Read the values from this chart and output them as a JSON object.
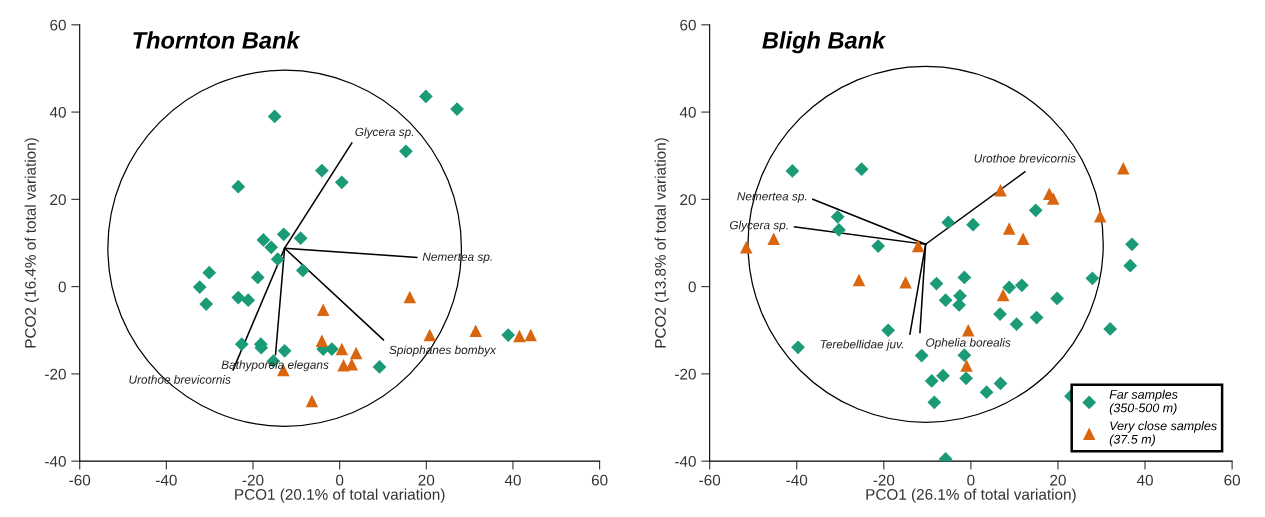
{
  "chart_data": [
    {
      "type": "scatter",
      "title": "Thornton Bank",
      "xlabel": "PCO1 (20.1% of total variation)",
      "ylabel": "PCO2 (16.4% of total variation)",
      "xlim": [
        -60,
        60
      ],
      "ylim": [
        -40,
        60
      ],
      "xticks": [
        -60,
        -40,
        -20,
        0,
        20,
        40,
        60
      ],
      "yticks": [
        -40,
        -20,
        0,
        20,
        40,
        60
      ],
      "grid": false,
      "legend": false,
      "series": [
        {
          "color": "#1b9a77",
          "marker": "diamond",
          "x": [
            -15,
            -23.4,
            -4.1,
            0.5,
            19.9,
            27.1,
            15.3,
            -12.9,
            -17.6,
            -15.8,
            -9.0,
            -14.3,
            -8.5,
            -18.9,
            -30.1,
            -32.3,
            -30.8,
            -23.4,
            -21.1,
            -22.6,
            -18.2,
            -18.1,
            -12.7,
            -15.3,
            -3.8,
            -1.8,
            9.2,
            38.9
          ],
          "values": [
            39.0,
            22.9,
            26.6,
            23.9,
            43.6,
            40.7,
            31.0,
            12.0,
            10.7,
            9.0,
            11.1,
            6.3,
            3.7,
            2.1,
            3.2,
            -0.1,
            -4.0,
            -2.5,
            -3.1,
            -13.2,
            -13.2,
            -14.0,
            -14.7,
            -17.1,
            -14.3,
            -14.3,
            -18.4,
            -11.1
          ]
        },
        {
          "color": "#d9650f",
          "marker": "triangle",
          "x": [
            -3.8,
            -4.1,
            0.5,
            3.8,
            0.9,
            2.8,
            -13.0,
            -6.4,
            16.2,
            20.8,
            31.4,
            41.5,
            44.1
          ],
          "values": [
            -5.3,
            -12.4,
            -14.3,
            -15.2,
            -18.0,
            -17.8,
            -19.1,
            -26.2,
            -2.4,
            -11.1,
            -10.1,
            -11.3,
            -11.1
          ]
        },
        {
          "type": "line",
          "color": "#000000",
          "x": [
            -12.7,
            2.8
          ],
          "values": [
            8.8,
            32.9
          ]
        },
        {
          "type": "line",
          "color": "#000000",
          "x": [
            -12.7,
            17.8
          ],
          "values": [
            8.8,
            6.7
          ]
        },
        {
          "type": "line",
          "color": "#000000",
          "x": [
            -12.7,
            10.1
          ],
          "values": [
            8.8,
            -12.2
          ]
        },
        {
          "type": "line",
          "color": "#000000",
          "x": [
            -12.7,
            -24.6
          ],
          "values": [
            8.8,
            -19.1
          ]
        },
        {
          "type": "line",
          "color": "#000000",
          "x": [
            -12.7,
            -14.8
          ],
          "values": [
            8.8,
            -15.6
          ]
        }
      ],
      "annotations": [
        {
          "text": "Glycera sp.",
          "x": 2.8,
          "y": 32.9
        },
        {
          "text": "Nemertea sp.",
          "x": 17.8,
          "y": 6.7
        },
        {
          "text": "Spiophanes bombyx",
          "x": 10.1,
          "y": -12.2
        },
        {
          "text": "Urothoe brevicornis",
          "x": -24.6,
          "y": -19.1
        },
        {
          "text": "Bathyporeia elegans",
          "x": -14.8,
          "y": -15.6
        }
      ]
    },
    {
      "type": "scatter",
      "title": "Bligh Bank",
      "xlabel": "PCO1 (26.1% of total variation)",
      "ylabel": "PCO2 (13.8% of total variation)",
      "xlim": [
        -60,
        60
      ],
      "ylim": [
        -40,
        60
      ],
      "xticks": [
        -60,
        -40,
        -20,
        0,
        20,
        40,
        60
      ],
      "yticks": [
        -40,
        -20,
        0,
        20,
        40,
        60
      ],
      "grid": false,
      "legend": "bottom right",
      "series": [
        {
          "name": "Far samples\n(350-500 m)",
          "color": "#1b9a77",
          "marker": "diamond",
          "x": [
            -41.0,
            -25.1,
            -30.6,
            -30.3,
            -21.3,
            -5.2,
            0.5,
            -7.9,
            -1.5,
            -5.8,
            -2.5,
            -2.7,
            -19.0,
            -39.7,
            -11.3,
            -1.5,
            -9.0,
            -6.4,
            -1.1,
            -8.4,
            -5.8,
            14.9,
            8.8,
            11.7,
            6.7,
            10.5,
            15.1,
            19.8,
            27.9,
            37.0,
            36.6,
            32.0,
            3.6,
            6.8,
            23.0
          ],
          "values": [
            26.5,
            26.9,
            16.0,
            13.0,
            9.3,
            14.7,
            14.2,
            0.7,
            2.1,
            -3.1,
            -2.1,
            -4.2,
            -10.0,
            -13.9,
            -15.8,
            -15.7,
            -21.6,
            -20.4,
            -21.0,
            -26.5,
            -39.5,
            17.5,
            -0.2,
            0.3,
            -6.3,
            -8.6,
            -7.1,
            -2.7,
            1.9,
            9.7,
            4.8,
            -9.7,
            -24.2,
            -22.2,
            -25.1
          ]
        },
        {
          "name": "Very close samples\n(37.5 m)",
          "color": "#d9650f",
          "marker": "triangle",
          "x": [
            -51.6,
            -45.3,
            -12.1,
            -25.7,
            -15.0,
            -0.6,
            -1.0,
            6.8,
            18.0,
            18.9,
            8.8,
            12.0,
            29.7,
            35.0,
            7.4
          ],
          "values": [
            9.0,
            11.0,
            9.3,
            1.5,
            1.0,
            -10.0,
            -18.1,
            22.1,
            21.3,
            20.2,
            13.3,
            11.0,
            16.1,
            27.1,
            -1.9
          ]
        },
        {
          "type": "line",
          "color": "#000000",
          "x": [
            -10.4,
            -36.3
          ],
          "values": [
            9.7,
            20.0
          ]
        },
        {
          "type": "line",
          "color": "#000000",
          "x": [
            -10.4,
            -40.5
          ],
          "values": [
            9.7,
            13.7
          ]
        },
        {
          "type": "line",
          "color": "#000000",
          "x": [
            -10.4,
            12.4
          ],
          "values": [
            9.7,
            26.3
          ]
        },
        {
          "type": "line",
          "color": "#000000",
          "x": [
            -10.4,
            -14.0
          ],
          "values": [
            9.7,
            -10.9
          ]
        },
        {
          "type": "line",
          "color": "#000000",
          "x": [
            -10.4,
            -11.7
          ],
          "values": [
            9.7,
            -10.5
          ]
        }
      ],
      "annotations": [
        {
          "text": "Nemertea sp.",
          "x": -36.3,
          "y": 20.0
        },
        {
          "text": "Glycera sp.",
          "x": -40.5,
          "y": 13.7
        },
        {
          "text": "Urothoe brevicornis",
          "x": 12.4,
          "y": 26.3
        },
        {
          "text": "Terebellidae juv.",
          "x": -14.0,
          "y": -10.9
        },
        {
          "text": "Ophelia borealis",
          "x": -11.7,
          "y": -10.5
        }
      ]
    }
  ]
}
